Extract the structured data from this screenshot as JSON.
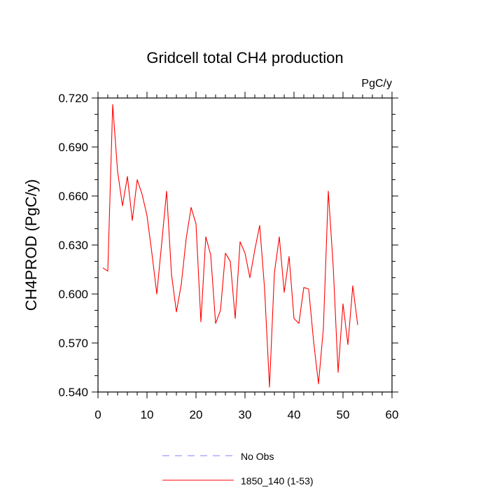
{
  "chart_data": {
    "type": "line",
    "title": "Gridcell total CH4 production",
    "units": "PgC/y",
    "xlabel": "",
    "ylabel": "CH4PROD  (PgC/y)",
    "xlim": [
      0,
      60
    ],
    "ylim": [
      0.54,
      0.72
    ],
    "x_ticks": [
      0,
      10,
      20,
      30,
      40,
      50,
      60
    ],
    "x_tick_labels": [
      "0",
      "10",
      "20",
      "30",
      "40",
      "50",
      "60"
    ],
    "y_ticks": [
      0.54,
      0.57,
      0.6,
      0.63,
      0.66,
      0.69,
      0.72
    ],
    "y_tick_labels": [
      "0.540",
      "0.570",
      "0.600",
      "0.630",
      "0.660",
      "0.690",
      "0.720"
    ],
    "grid": false,
    "legend_position": "bottom-center",
    "series": [
      {
        "name": "No Obs",
        "color": "#8080ff",
        "style": "dashed",
        "x": [],
        "values": []
      },
      {
        "name": "1850_140 (1-53)",
        "color": "#ff0000",
        "style": "solid",
        "x": [
          1,
          2,
          3,
          4,
          5,
          6,
          7,
          8,
          9,
          10,
          11,
          12,
          13,
          14,
          15,
          16,
          17,
          18,
          19,
          20,
          21,
          22,
          23,
          24,
          25,
          26,
          27,
          28,
          29,
          30,
          31,
          32,
          33,
          34,
          35,
          36,
          37,
          38,
          39,
          40,
          41,
          42,
          43,
          44,
          45,
          46,
          47,
          48,
          49,
          50,
          51,
          52,
          53
        ],
        "values": [
          0.616,
          0.614,
          0.716,
          0.675,
          0.654,
          0.672,
          0.645,
          0.67,
          0.661,
          0.648,
          0.625,
          0.6,
          0.631,
          0.663,
          0.612,
          0.589,
          0.606,
          0.634,
          0.653,
          0.643,
          0.583,
          0.635,
          0.624,
          0.582,
          0.59,
          0.625,
          0.62,
          0.585,
          0.632,
          0.625,
          0.61,
          0.627,
          0.642,
          0.603,
          0.543,
          0.613,
          0.635,
          0.601,
          0.623,
          0.585,
          0.582,
          0.604,
          0.603,
          0.571,
          0.545,
          0.579,
          0.663,
          0.617,
          0.552,
          0.594,
          0.569,
          0.605,
          0.581
        ]
      }
    ]
  }
}
